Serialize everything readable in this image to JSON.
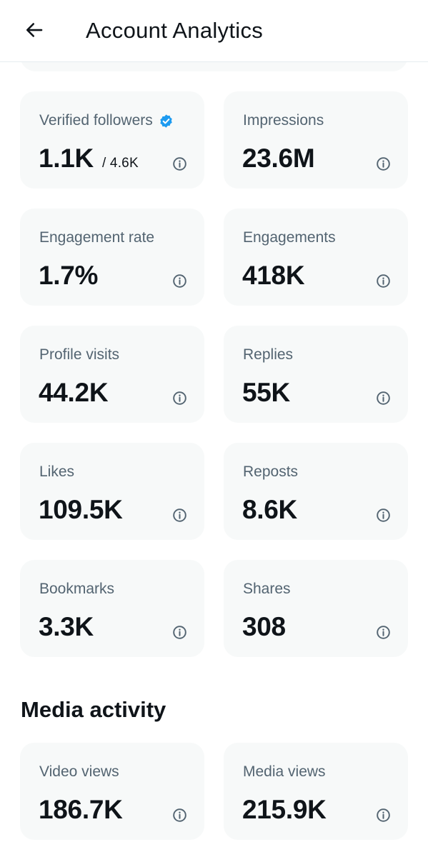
{
  "header": {
    "title": "Account Analytics",
    "back_icon": "arrow-left-icon"
  },
  "metrics": [
    {
      "label": "Verified followers",
      "value": "1.1K",
      "sub": "/ 4.6K",
      "verified_icon": "verified-badge-icon",
      "verified_color": "#1d9bf0"
    },
    {
      "label": "Impressions",
      "value": "23.6M"
    },
    {
      "label": "Engagement rate",
      "value": "1.7%"
    },
    {
      "label": "Engagements",
      "value": "418K"
    },
    {
      "label": "Profile visits",
      "value": "44.2K"
    },
    {
      "label": "Replies",
      "value": "55K"
    },
    {
      "label": "Likes",
      "value": "109.5K"
    },
    {
      "label": "Reposts",
      "value": "8.6K"
    },
    {
      "label": "Bookmarks",
      "value": "3.3K"
    },
    {
      "label": "Shares",
      "value": "308"
    }
  ],
  "media_activity": {
    "title": "Media activity",
    "metrics": [
      {
        "label": "Video views",
        "value": "186.7K"
      },
      {
        "label": "Media views",
        "value": "215.9K"
      }
    ]
  },
  "info_icon": "info-circle-icon",
  "colors": {
    "card_background": "#f7f9f9",
    "label_text": "#536471",
    "value_text": "#0f1419",
    "accent": "#1d9bf0"
  }
}
